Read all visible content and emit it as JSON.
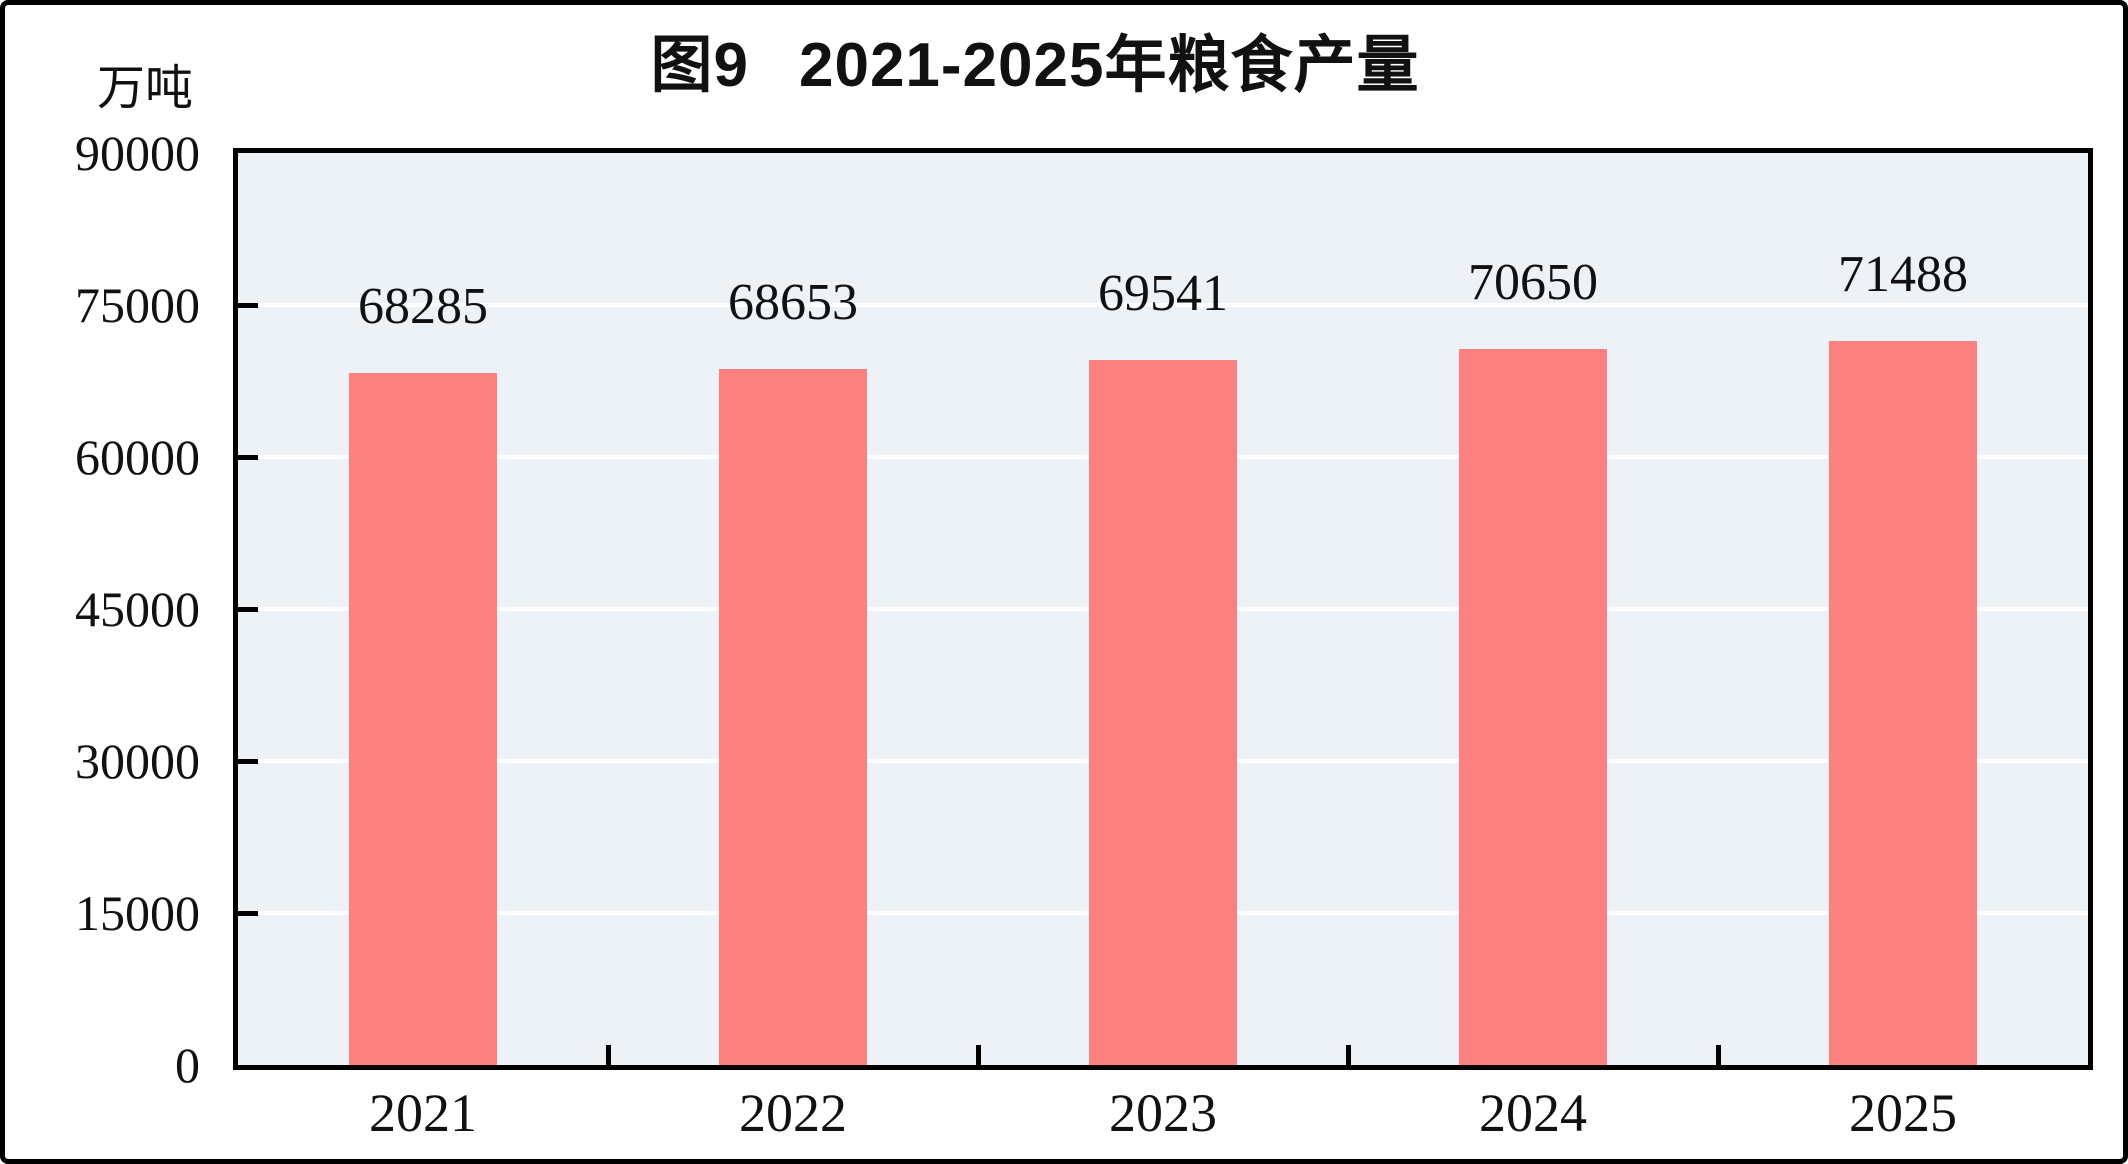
{
  "header": {
    "title_prefix": "图9",
    "title_text": "2021-2025年粮食产量"
  },
  "chart_data": {
    "type": "bar",
    "title": "图9 2021-2025年粮食产量",
    "unit_label": "万吨",
    "categories": [
      "2021",
      "2022",
      "2023",
      "2024",
      "2025"
    ],
    "values": [
      68285,
      68653,
      69541,
      70650,
      71488
    ],
    "value_labels_shown": true,
    "xlabel": "",
    "ylabel": "万吨",
    "ylim": [
      0,
      90000
    ],
    "ytick_interval": 15000,
    "yticks": [
      0,
      15000,
      30000,
      45000,
      60000,
      75000,
      90000
    ],
    "grid": "horizontal-white-lines",
    "legend_position": "none",
    "colors": {
      "bar_fill": "#FB8181",
      "plot_background": "#ECF2F6",
      "gridline": "#FFFFFF",
      "axis_frame": "#000000",
      "text": "#111111",
      "page_background": "#FFFFFF"
    }
  }
}
